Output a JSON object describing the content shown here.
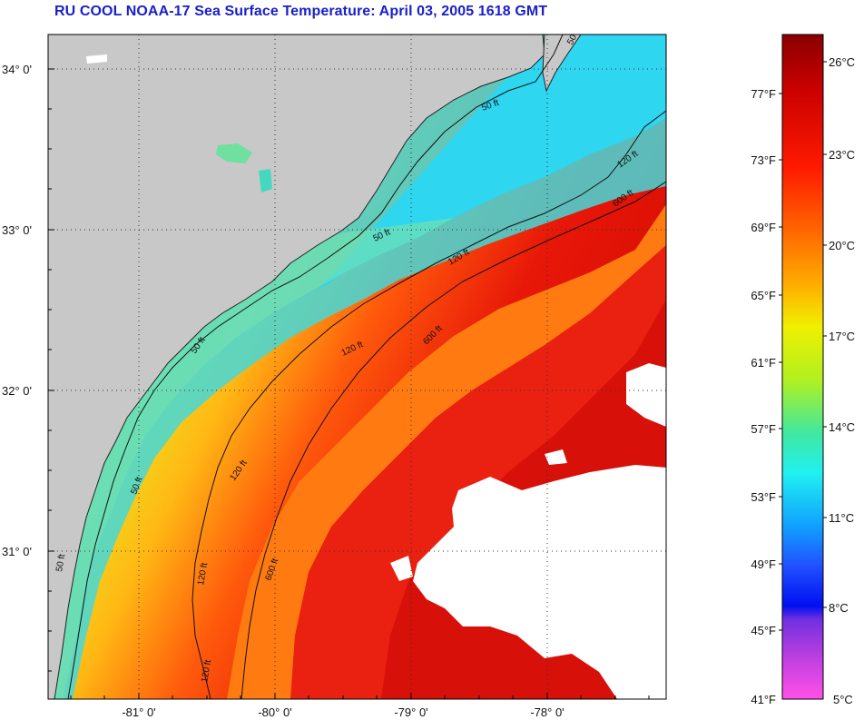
{
  "title": "RU COOL  NOAA-17  Sea Surface Temperature:  April 03, 2005 1618 GMT",
  "map": {
    "lat_labels": [
      "34° 0'",
      "33° 0'",
      "32° 0'",
      "31° 0'"
    ],
    "lon_labels": [
      "-81° 0'",
      "-80° 0'",
      "-79° 0'",
      "-78° 0'"
    ],
    "contour_labels": [
      "50 ft",
      "50 ft",
      "50 ft",
      "50 ft",
      "50 ft",
      "50 ft",
      "120 ft",
      "120 ft",
      "120 ft",
      "120 ft",
      "120 ft",
      "120 ft",
      "600 ft",
      "600 ft",
      "600 ft"
    ],
    "colors": {
      "land": "#c8c8c8",
      "cloud": "#ffffff",
      "cold": "#35d6f0",
      "cool": "#6fe0a0",
      "mild": "#e6ef22",
      "warm": "#ff7a10",
      "hot": "#e81808",
      "hottest": "#c00000",
      "contour": "#111111",
      "grid": "#333333"
    }
  },
  "colorbar": {
    "fahrenheit_labels": [
      "77°F",
      "73°F",
      "69°F",
      "65°F",
      "61°F",
      "57°F",
      "53°F",
      "49°F",
      "45°F",
      "41°F"
    ],
    "celsius_labels": [
      "26°C",
      "23°C",
      "20°C",
      "17°C",
      "14°C",
      "11°C",
      "8°C",
      "5°C"
    ]
  }
}
